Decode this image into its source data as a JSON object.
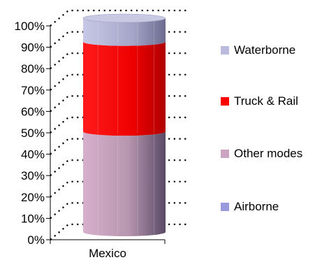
{
  "chart_data": {
    "type": "bar",
    "stacked": "percent",
    "shape": "cylinder",
    "categories": [
      "Mexico"
    ],
    "series": [
      {
        "name": "Airborne",
        "values": [
          0
        ],
        "color": "#9999DD"
      },
      {
        "name": "Other modes",
        "values": [
          47
        ],
        "color": "#CCA3C0"
      },
      {
        "name": "Truck & Rail",
        "values": [
          42
        ],
        "color": "#FF0000"
      },
      {
        "name": "Waterborne",
        "values": [
          11
        ],
        "color": "#BBBBDD"
      }
    ],
    "y_ticks": [
      "0%",
      "10%",
      "20%",
      "30%",
      "40%",
      "50%",
      "60%",
      "70%",
      "80%",
      "90%",
      "100%"
    ],
    "ylim": [
      0,
      100
    ],
    "grid": "dotted",
    "legend_position": "right",
    "legend_order": [
      "Waterborne",
      "Truck & Rail",
      "Other modes",
      "Airborne"
    ]
  }
}
